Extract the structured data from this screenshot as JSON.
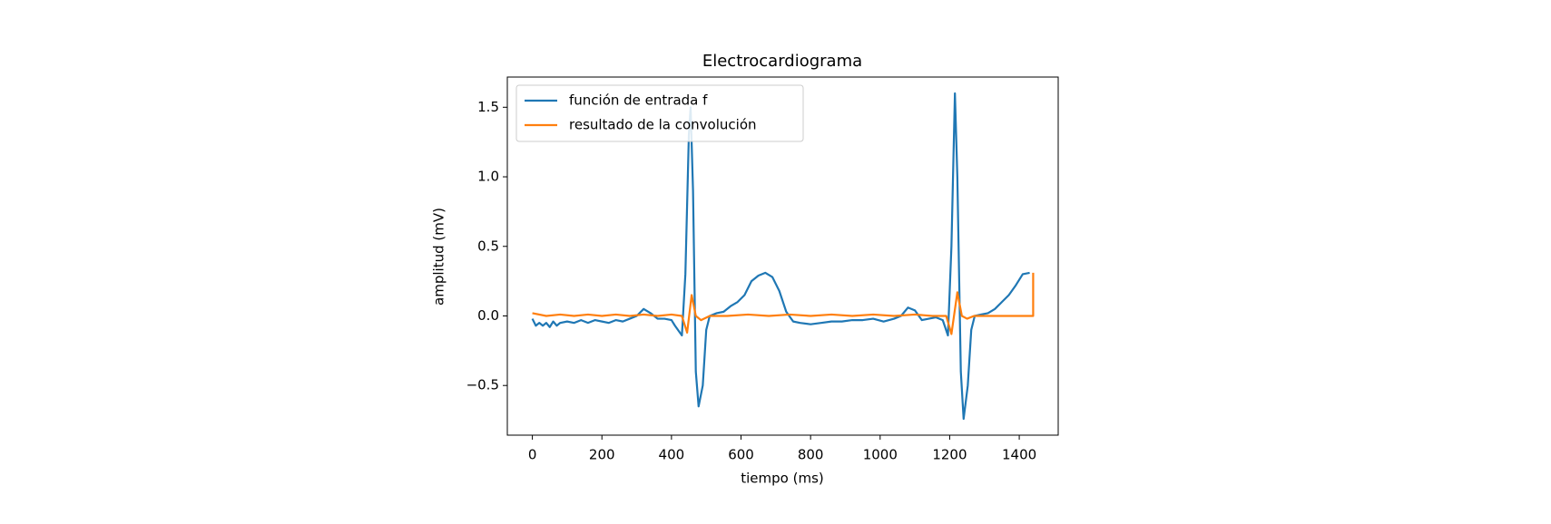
{
  "chart_data": {
    "type": "line",
    "title": "Electrocardiograma",
    "xlabel": "tiempo (ms)",
    "ylabel": "amplitud (mV)",
    "legend": "upper left",
    "xlim": [
      -72,
      1512
    ],
    "xticks": [
      0,
      200,
      400,
      600,
      800,
      1000,
      1200,
      1400
    ],
    "ylim": [
      -0.857,
      1.717
    ],
    "yticks": [
      {
        "value": -0.5,
        "label": "−0.5"
      },
      {
        "value": 0.0,
        "label": "0.0"
      },
      {
        "value": 0.5,
        "label": "0.5"
      },
      {
        "value": 1.0,
        "label": "1.0"
      },
      {
        "value": 1.5,
        "label": "1.5"
      }
    ],
    "series": [
      {
        "name": "función de entrada f",
        "color": "#1f77b4",
        "x": [
          0,
          10,
          20,
          30,
          40,
          50,
          60,
          70,
          80,
          100,
          120,
          140,
          160,
          180,
          200,
          220,
          240,
          260,
          280,
          300,
          320,
          340,
          360,
          380,
          400,
          410,
          430,
          440,
          450,
          455,
          462,
          470,
          478,
          490,
          500,
          510,
          530,
          550,
          570,
          590,
          610,
          630,
          650,
          670,
          690,
          710,
          730,
          750,
          770,
          800,
          830,
          860,
          890,
          920,
          950,
          980,
          1010,
          1040,
          1060,
          1080,
          1100,
          1120,
          1140,
          1160,
          1180,
          1195,
          1205,
          1215,
          1222,
          1232,
          1240,
          1252,
          1262,
          1272,
          1290,
          1310,
          1330,
          1350,
          1370,
          1390,
          1410,
          1430
        ],
        "values": [
          -0.02,
          -0.07,
          -0.05,
          -0.07,
          -0.05,
          -0.08,
          -0.04,
          -0.07,
          -0.05,
          -0.04,
          -0.05,
          -0.03,
          -0.05,
          -0.03,
          -0.04,
          -0.05,
          -0.03,
          -0.04,
          -0.02,
          0.0,
          0.05,
          0.02,
          -0.02,
          -0.02,
          -0.03,
          -0.07,
          -0.14,
          0.3,
          1.3,
          1.5,
          0.9,
          -0.4,
          -0.65,
          -0.5,
          -0.1,
          0.0,
          0.02,
          0.03,
          0.07,
          0.1,
          0.15,
          0.25,
          0.29,
          0.31,
          0.28,
          0.18,
          0.03,
          -0.04,
          -0.05,
          -0.06,
          -0.05,
          -0.04,
          -0.04,
          -0.03,
          -0.03,
          -0.02,
          -0.04,
          -0.02,
          0.0,
          0.06,
          0.04,
          -0.03,
          -0.02,
          -0.01,
          -0.03,
          -0.14,
          0.5,
          1.6,
          1.0,
          -0.4,
          -0.74,
          -0.5,
          -0.1,
          0.0,
          0.01,
          0.02,
          0.05,
          0.1,
          0.15,
          0.22,
          0.3,
          0.31
        ]
      },
      {
        "name": "resultado de la convolución",
        "color": "#ff7f0e",
        "x": [
          0,
          40,
          80,
          120,
          160,
          200,
          240,
          280,
          320,
          360,
          400,
          430,
          445,
          458,
          470,
          485,
          510,
          560,
          620,
          680,
          740,
          800,
          860,
          920,
          980,
          1040,
          1100,
          1150,
          1190,
          1205,
          1222,
          1235,
          1250,
          1270,
          1320,
          1380,
          1440,
          1440
        ],
        "values": [
          0.02,
          0.0,
          0.01,
          0.0,
          0.01,
          0.0,
          0.01,
          0.0,
          0.01,
          0.0,
          0.01,
          0.0,
          -0.12,
          0.15,
          0.0,
          -0.03,
          0.0,
          0.0,
          0.01,
          0.0,
          0.01,
          0.0,
          0.01,
          0.0,
          0.01,
          0.0,
          0.01,
          0.0,
          0.0,
          -0.13,
          0.17,
          0.0,
          -0.02,
          0.0,
          0.0,
          0.0,
          0.0,
          0.31
        ]
      }
    ]
  }
}
